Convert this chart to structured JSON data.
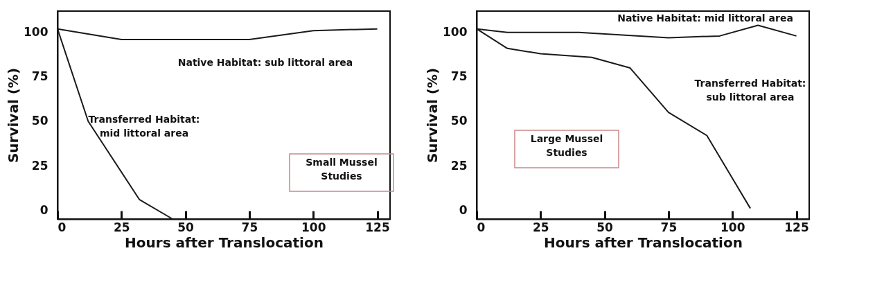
{
  "chart_data": [
    {
      "type": "line",
      "xlabel": "Hours after Translocation",
      "ylabel": "Survival  (%)",
      "xlim": [
        0,
        130
      ],
      "ylim": [
        -5,
        112
      ],
      "xticks": [
        0,
        25,
        50,
        75,
        100,
        125
      ],
      "yticks": [
        0,
        25,
        50,
        75,
        100
      ],
      "grid": false,
      "marker": "none",
      "line_style": "solid",
      "series": [
        {
          "color": "#1a1a1a",
          "x": [
            0,
            25,
            50,
            75,
            100,
            125
          ],
          "values": [
            102,
            96,
            96,
            96,
            101,
            102
          ]
        },
        {
          "color": "#1a1a1a",
          "x": [
            0,
            12,
            32,
            45
          ],
          "values": [
            102,
            50,
            6,
            -5
          ]
        }
      ],
      "annotations": [
        "Native Habitat: sub littoral area",
        "Transferred Habitat:\nmid littoral area",
        "Small Mussel\nStudies"
      ]
    },
    {
      "type": "line",
      "xlabel": "Hours after Translocation",
      "ylabel": "Survival  (%)",
      "xlim": [
        0,
        130
      ],
      "ylim": [
        -5,
        112
      ],
      "xticks": [
        0,
        25,
        50,
        75,
        100,
        125
      ],
      "yticks": [
        0,
        25,
        50,
        75,
        100
      ],
      "grid": false,
      "marker": "none",
      "line_style": "solid",
      "series": [
        {
          "color": "#1a1a1a",
          "x": [
            0,
            12,
            40,
            75,
            95,
            110,
            125
          ],
          "values": [
            102,
            100,
            100,
            97,
            98,
            104,
            98
          ]
        },
        {
          "color": "#1a1a1a",
          "x": [
            0,
            12,
            25,
            45,
            60,
            75,
            90,
            107
          ],
          "values": [
            102,
            91,
            88,
            86,
            80,
            55,
            42,
            1
          ]
        }
      ],
      "annotations": [
        "Native Habitat: mid littoral area",
        "Transferred Habitat:\nsub littoral area",
        "Large Mussel\nStudies"
      ]
    }
  ]
}
